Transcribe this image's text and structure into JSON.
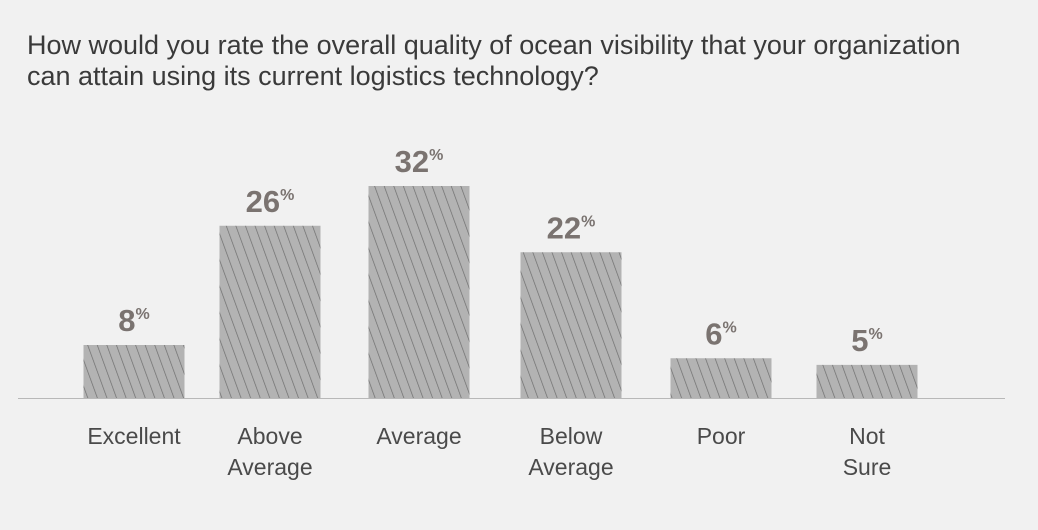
{
  "chart_data": {
    "type": "bar",
    "title": "How would you rate the overall quality of ocean visibility that your organization can attain using its current logistics technology?",
    "categories": [
      "Excellent",
      "Above\nAverage",
      "Average",
      "Below\nAverage",
      "Poor",
      "Not\nSure"
    ],
    "values": [
      8,
      26,
      32,
      22,
      6,
      5
    ],
    "value_suffix": "%",
    "xlabel": "",
    "ylabel": "",
    "ylim": [
      0,
      32
    ],
    "grid": false,
    "legend": "none"
  },
  "colors": {
    "background": "#f1f1f1",
    "bar_fill": "#b3b3b3",
    "bar_hatch": "#6e6e6e",
    "value_label": "#7a7370",
    "baseline": "#b8b8b8"
  }
}
